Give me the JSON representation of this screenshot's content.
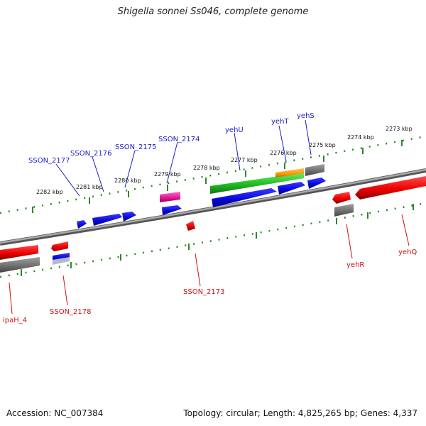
{
  "title": "Shigella sonnei Ss046, complete genome",
  "footer": {
    "accession": "Accession: NC_007384",
    "topology": "Topology: circular; Length: 4,825,265 bp; Genes: 4,337"
  },
  "colors": {
    "forward_label": "#1c1ccc",
    "reverse_label": "#cc1111",
    "ruler": "#2a8a2a",
    "backbone": "#8a8a8a"
  },
  "ruler_labels": [
    "2282 kbp",
    "2281 kbp",
    "2280 kbp",
    "2279 kbp",
    "2278 kbp",
    "2277 kbp",
    "2276 kbp",
    "2275 kbp",
    "2274 kbp",
    "2273 kbp"
  ],
  "forward_genes": [
    "SSON_2177",
    "SSON_2176",
    "SSON_2175",
    "SSON_2174",
    "yehU",
    "yehT",
    "yehS"
  ],
  "reverse_genes": [
    "ipaH_4",
    "SSON_2178",
    "SSON_2173",
    "yehR",
    "yehQ"
  ]
}
